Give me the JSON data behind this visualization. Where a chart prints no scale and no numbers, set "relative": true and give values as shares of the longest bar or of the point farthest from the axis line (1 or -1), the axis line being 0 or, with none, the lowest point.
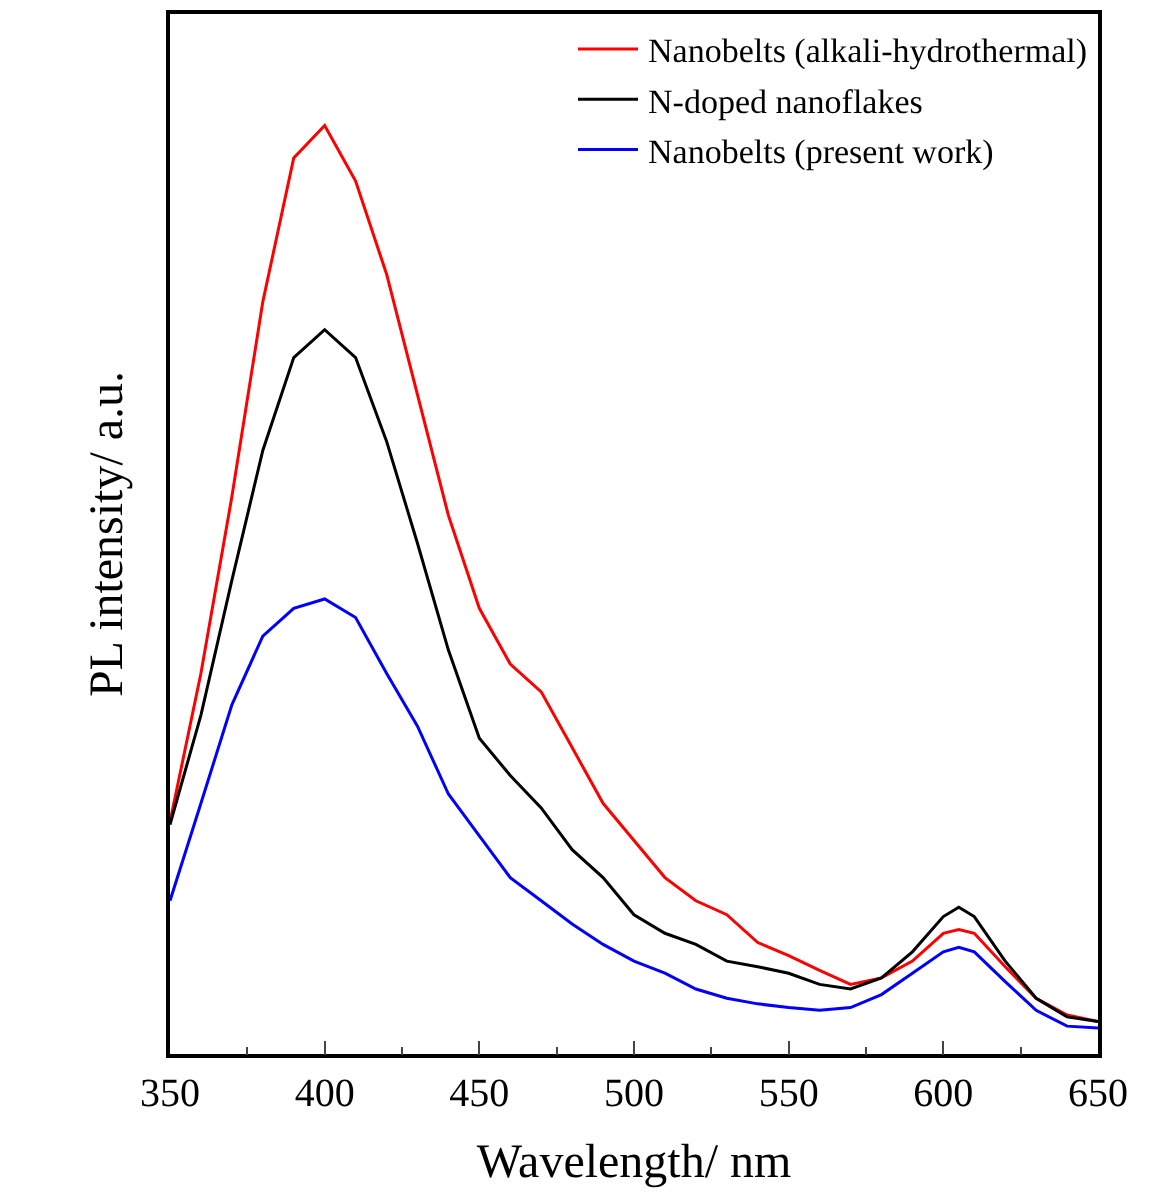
{
  "chart_data": {
    "type": "line",
    "xlabel": "Wavelength/ nm",
    "ylabel": "PL intensity/ a.u.",
    "relative": true,
    "xlim": [
      350,
      650
    ],
    "xticks": [
      350,
      400,
      450,
      500,
      550,
      600,
      650
    ],
    "legend": "top right",
    "marker": "none",
    "line_style": "solid",
    "x": [
      350,
      360,
      370,
      380,
      390,
      400,
      410,
      420,
      430,
      440,
      450,
      460,
      470,
      480,
      490,
      500,
      510,
      520,
      530,
      540,
      550,
      560,
      570,
      580,
      590,
      600,
      605,
      610,
      620,
      630,
      640,
      650
    ],
    "series": [
      {
        "name": "Nanobelts (alkali-hydrothermal)",
        "color": "#ff0000",
        "values": [
          0.25,
          0.41,
          0.6,
          0.81,
          0.965,
          1.0,
          0.94,
          0.84,
          0.71,
          0.58,
          0.48,
          0.42,
          0.39,
          0.33,
          0.27,
          0.23,
          0.19,
          0.165,
          0.15,
          0.12,
          0.106,
          0.09,
          0.075,
          0.082,
          0.1,
          0.13,
          0.134,
          0.13,
          0.094,
          0.06,
          0.042,
          0.035
        ]
      },
      {
        "name": "N-doped nanoflakes",
        "color": "#000000",
        "values": [
          0.247,
          0.365,
          0.51,
          0.65,
          0.75,
          0.78,
          0.75,
          0.66,
          0.55,
          0.435,
          0.34,
          0.3,
          0.265,
          0.22,
          0.19,
          0.15,
          0.13,
          0.118,
          0.1,
          0.094,
          0.087,
          0.075,
          0.07,
          0.082,
          0.11,
          0.148,
          0.158,
          0.148,
          0.1,
          0.06,
          0.04,
          0.035
        ]
      },
      {
        "name": "Nanobelts (present work)",
        "color": "#0000ff",
        "values": [
          0.165,
          0.27,
          0.376,
          0.45,
          0.48,
          0.49,
          0.47,
          0.41,
          0.353,
          0.28,
          0.235,
          0.19,
          0.165,
          0.14,
          0.118,
          0.1,
          0.087,
          0.07,
          0.06,
          0.054,
          0.05,
          0.047,
          0.05,
          0.064,
          0.087,
          0.11,
          0.115,
          0.11,
          0.078,
          0.047,
          0.03,
          0.028
        ]
      }
    ]
  }
}
